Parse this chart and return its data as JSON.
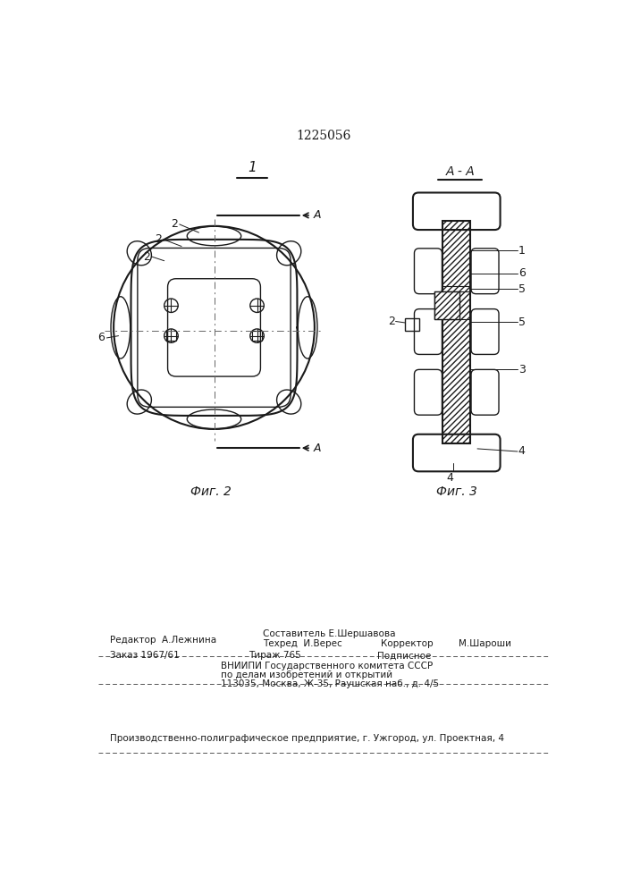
{
  "patent_number": "1225056",
  "fig2_caption": "Фиг. 2",
  "fig3_caption": "Фиг. 3",
  "fig2_view_label": "1",
  "fig3_section_label": "A - A",
  "bg_color": "#ffffff",
  "lc": "#1a1a1a",
  "editor_line": "Редактор  А.Лежнина",
  "composer_line": "Составитель Е.Шершавова",
  "techred_line": "Техред  И.Верес",
  "corrector_label": "Корректор",
  "corrector_name": "М.Шароши",
  "order_line": "Заказ 1967/61",
  "tirazh_line": "Тираж 765",
  "podpisnoe": "Подписное",
  "vniip1": "ВНИИПИ Государственного комитета СССР",
  "vniip2": "по делам изобретений и открытий",
  "vniip3": "113035, Москва, Ж-35, Раушская наб., д. 4/5",
  "bottom_last": "Производственно-полиграфическое предприятие, г. Ужгород, ул. Проектная, 4"
}
